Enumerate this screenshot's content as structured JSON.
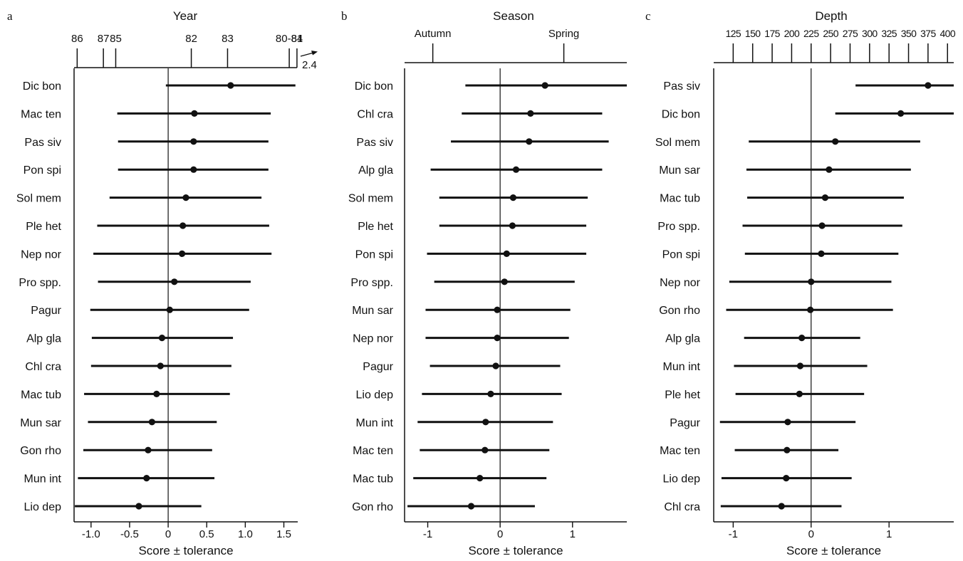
{
  "chart_data": [
    {
      "type": "scatter",
      "panel_letter": "a",
      "xlabel": "Score ± tolerance",
      "xlim": [
        -1.22,
        1.68
      ],
      "xticks": [
        -1.0,
        -0.5,
        0,
        0.5,
        1.0,
        1.5
      ],
      "xtick_labels": [
        "-1.0",
        "-0.5",
        "0",
        "0.5",
        "1.0",
        "1.5"
      ],
      "reference_line": 0,
      "top_axis": {
        "title": "Year",
        "ticks": [
          {
            "label": "86",
            "value": -1.18
          },
          {
            "label": "87",
            "value": -0.84
          },
          {
            "label": "85",
            "value": -0.68
          },
          {
            "label": "82",
            "value": 0.3
          },
          {
            "label": "83",
            "value": 0.77
          },
          {
            "label": "80-84",
            "value": 1.57
          },
          {
            "label": "81",
            "value": 1.67
          }
        ],
        "arrow_label": "2.4"
      },
      "species": [
        "Dic bon",
        "Mac ten",
        "Pas siv",
        "Pon spi",
        "Sol mem",
        "Ple het",
        "Nep nor",
        "Pro spp.",
        "Pagur",
        "Alp gla",
        "Chl cra",
        "Mac tub",
        "Mun sar",
        "Gon rho",
        "Mun int",
        "Lio dep"
      ],
      "score": [
        0.81,
        0.34,
        0.33,
        0.33,
        0.23,
        0.19,
        0.18,
        0.08,
        0.02,
        -0.08,
        -0.1,
        -0.15,
        -0.21,
        -0.26,
        -0.28,
        -0.38
      ],
      "low": [
        -0.03,
        -0.66,
        -0.65,
        -0.65,
        -0.76,
        -0.92,
        -0.97,
        -0.91,
        -1.01,
        -0.99,
        -1.0,
        -1.09,
        -1.04,
        -1.1,
        -1.17,
        -1.21
      ],
      "high": [
        1.65,
        1.33,
        1.3,
        1.3,
        1.21,
        1.31,
        1.34,
        1.07,
        1.05,
        0.84,
        0.82,
        0.8,
        0.63,
        0.57,
        0.6,
        0.43
      ]
    },
    {
      "type": "scatter",
      "panel_letter": "b",
      "xlabel": "Score ± tolerance",
      "xlim": [
        -1.32,
        1.75
      ],
      "xticks": [
        -1,
        0,
        1
      ],
      "xtick_labels": [
        "-1",
        "0",
        "1"
      ],
      "reference_line": 0,
      "top_axis": {
        "title": "Season",
        "ticks": [
          {
            "label": "Autumn",
            "value": -0.93
          },
          {
            "label": "Spring",
            "value": 0.88
          }
        ]
      },
      "species": [
        "Dic bon",
        "Chl cra",
        "Pas siv",
        "Alp gla",
        "Sol mem",
        "Ple het",
        "Pon spi",
        "Pro spp.",
        "Mun sar",
        "Nep nor",
        "Pagur",
        "Lio dep",
        "Mun int",
        "Mac ten",
        "Mac tub",
        "Gon rho"
      ],
      "score": [
        0.62,
        0.42,
        0.4,
        0.22,
        0.18,
        0.17,
        0.09,
        0.06,
        -0.04,
        -0.04,
        -0.06,
        -0.13,
        -0.2,
        -0.21,
        -0.28,
        -0.4
      ],
      "low": [
        -0.48,
        -0.53,
        -0.68,
        -0.96,
        -0.84,
        -0.84,
        -1.01,
        -0.91,
        -1.03,
        -1.03,
        -0.97,
        -1.08,
        -1.14,
        -1.11,
        -1.2,
        -1.28
      ],
      "high": [
        1.75,
        1.41,
        1.5,
        1.41,
        1.21,
        1.19,
        1.19,
        1.03,
        0.97,
        0.95,
        0.83,
        0.85,
        0.73,
        0.68,
        0.64,
        0.48
      ]
    },
    {
      "type": "scatter",
      "panel_letter": "c",
      "xlabel": "Score ± tolerance",
      "xlim": [
        -1.25,
        1.83
      ],
      "xticks": [
        -1,
        0,
        1
      ],
      "xtick_labels": [
        "-1",
        "0",
        "1"
      ],
      "reference_line": 0,
      "top_axis": {
        "title": "Depth",
        "ticks": [
          {
            "label": "125",
            "value": -1.0
          },
          {
            "label": "150",
            "value": -0.75
          },
          {
            "label": "175",
            "value": -0.5
          },
          {
            "label": "200",
            "value": -0.25
          },
          {
            "label": "225",
            "value": 0.0
          },
          {
            "label": "250",
            "value": 0.25
          },
          {
            "label": "275",
            "value": 0.5
          },
          {
            "label": "300",
            "value": 0.75
          },
          {
            "label": "325",
            "value": 1.0
          },
          {
            "label": "350",
            "value": 1.25
          },
          {
            "label": "375",
            "value": 1.5
          },
          {
            "label": "400",
            "value": 1.75
          }
        ]
      },
      "species": [
        "Pas siv",
        "Dic bon",
        "Sol mem",
        "Mun sar",
        "Mac tub",
        "Pro spp.",
        "Pon spi",
        "Nep nor",
        "Gon rho",
        "Alp gla",
        "Mun int",
        "Ple het",
        "Pagur",
        "Mac ten",
        "Lio dep",
        "Chl cra"
      ],
      "score": [
        1.5,
        1.15,
        0.31,
        0.23,
        0.18,
        0.14,
        0.13,
        0.0,
        -0.01,
        -0.12,
        -0.14,
        -0.15,
        -0.3,
        -0.31,
        -0.32,
        -0.38
      ],
      "low": [
        0.57,
        0.31,
        -0.8,
        -0.83,
        -0.82,
        -0.88,
        -0.85,
        -1.05,
        -1.09,
        -0.86,
        -0.99,
        -0.97,
        -1.17,
        -0.98,
        -1.15,
        -1.16
      ],
      "high": [
        1.83,
        1.83,
        1.4,
        1.28,
        1.19,
        1.17,
        1.12,
        1.03,
        1.05,
        0.63,
        0.72,
        0.68,
        0.57,
        0.35,
        0.52,
        0.39
      ]
    }
  ]
}
